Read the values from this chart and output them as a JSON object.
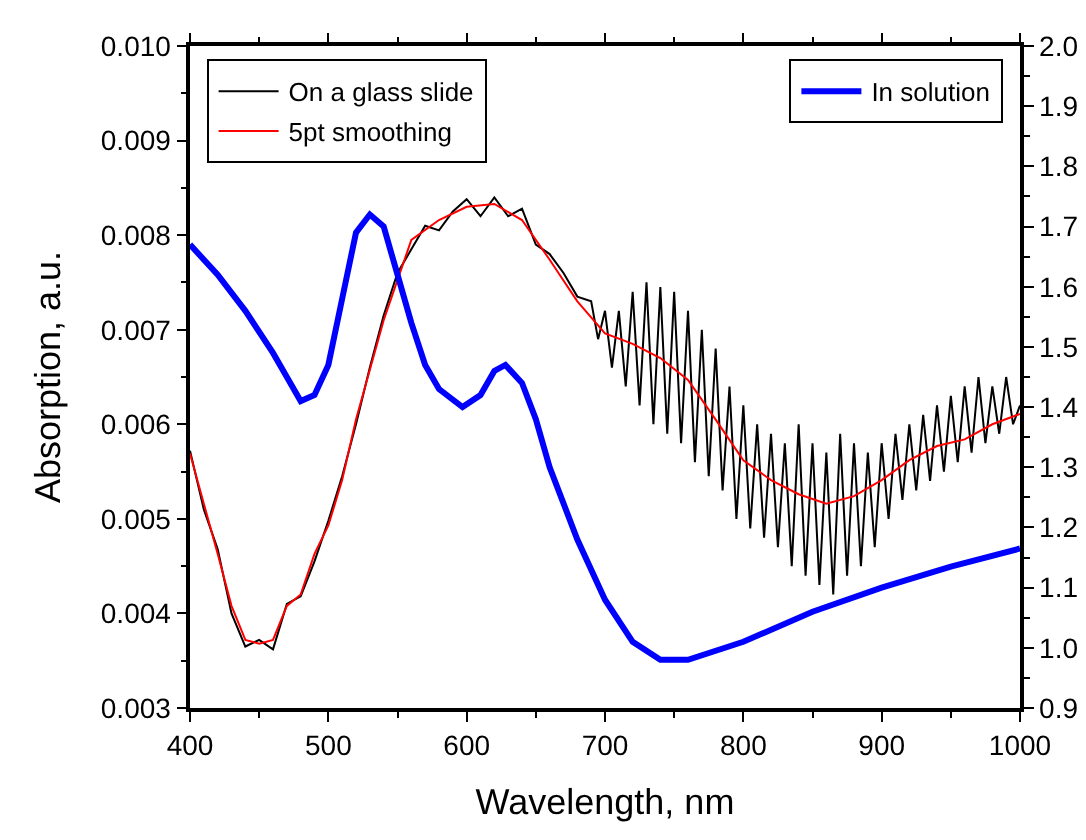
{
  "chart_data": {
    "type": "line",
    "xlabel": "Wavelength, nm",
    "ylabel": "Absorption, a.u.",
    "xlim": [
      400,
      1000
    ],
    "xticks": [
      400,
      500,
      600,
      700,
      800,
      900,
      1000
    ],
    "ylim": [
      0.003,
      0.01
    ],
    "yticks": [
      0.003,
      0.004,
      0.005,
      0.006,
      0.007,
      0.008,
      0.009,
      {
        "value": 0.01,
        "label": "0.010"
      }
    ],
    "y2lim": [
      0.9,
      2.0
    ],
    "y2ticks": [
      0.9,
      {
        "value": 1.0,
        "label": "1.0"
      },
      1.1,
      1.2,
      1.3,
      1.4,
      1.5,
      1.6,
      1.7,
      1.8,
      1.9,
      {
        "value": 2.0,
        "label": "2.0"
      }
    ],
    "legend": "top left",
    "line_style": "solid",
    "marker": "none",
    "series": [
      {
        "name": "On a glass slide",
        "color": "#000000",
        "x": [
          400,
          410,
          420,
          430,
          440,
          450,
          460,
          470,
          480,
          490,
          500,
          510,
          520,
          530,
          540,
          550,
          560,
          570,
          580,
          590,
          600,
          610,
          620,
          630,
          640,
          650,
          660,
          670,
          680,
          690,
          695,
          700,
          705,
          710,
          715,
          720,
          725,
          730,
          735,
          740,
          745,
          750,
          755,
          760,
          765,
          770,
          775,
          780,
          785,
          790,
          795,
          800,
          805,
          810,
          815,
          820,
          825,
          830,
          835,
          840,
          845,
          850,
          855,
          860,
          865,
          870,
          875,
          880,
          885,
          890,
          895,
          900,
          905,
          910,
          915,
          920,
          925,
          930,
          935,
          940,
          945,
          950,
          955,
          960,
          965,
          970,
          975,
          980,
          985,
          990,
          995,
          1000
        ],
        "values": [
          0.00572,
          0.0051,
          0.00468,
          0.004,
          0.00365,
          0.00372,
          0.00362,
          0.0041,
          0.00418,
          0.00455,
          0.00498,
          0.00545,
          0.006,
          0.0066,
          0.00715,
          0.0076,
          0.00785,
          0.0081,
          0.00805,
          0.00825,
          0.00838,
          0.0082,
          0.0084,
          0.0082,
          0.00828,
          0.0079,
          0.0078,
          0.0076,
          0.00735,
          0.0073,
          0.0069,
          0.0072,
          0.0066,
          0.0072,
          0.0064,
          0.0074,
          0.0062,
          0.0075,
          0.006,
          0.00745,
          0.0059,
          0.0074,
          0.0058,
          0.0072,
          0.0056,
          0.007,
          0.00545,
          0.0068,
          0.0053,
          0.0064,
          0.005,
          0.0062,
          0.0049,
          0.006,
          0.0048,
          0.0059,
          0.0047,
          0.0058,
          0.0045,
          0.006,
          0.0044,
          0.0058,
          0.0043,
          0.0057,
          0.0042,
          0.0059,
          0.0044,
          0.0058,
          0.0045,
          0.0057,
          0.0047,
          0.0058,
          0.005,
          0.0059,
          0.0052,
          0.006,
          0.0053,
          0.0061,
          0.0054,
          0.0062,
          0.0055,
          0.0063,
          0.0056,
          0.0064,
          0.0057,
          0.0065,
          0.0058,
          0.0064,
          0.0059,
          0.0065,
          0.006,
          0.0062
        ]
      },
      {
        "name": "5pt smoothing",
        "color": "#ff0000",
        "x": [
          400,
          420,
          430,
          440,
          450,
          460,
          470,
          480,
          490,
          500,
          510,
          520,
          540,
          560,
          580,
          600,
          620,
          640,
          660,
          680,
          700,
          720,
          740,
          760,
          780,
          800,
          820,
          840,
          860,
          880,
          900,
          920,
          940,
          960,
          980,
          1000
        ],
        "values": [
          0.00569,
          0.00463,
          0.00408,
          0.00372,
          0.00368,
          0.00372,
          0.00408,
          0.0042,
          0.00463,
          0.00493,
          0.00541,
          0.00605,
          0.0071,
          0.00795,
          0.00816,
          0.0083,
          0.00833,
          0.00816,
          0.00774,
          0.0073,
          0.00696,
          0.00685,
          0.0067,
          0.00647,
          0.00605,
          0.00562,
          0.00541,
          0.00526,
          0.00516,
          0.00524,
          0.00541,
          0.00562,
          0.00577,
          0.00584,
          0.006,
          0.00611
        ]
      },
      {
        "name": "In solution",
        "color": "#0000ff",
        "axis": "y2",
        "x": [
          400,
          420,
          440,
          460,
          470,
          480,
          490,
          500,
          510,
          520,
          530,
          540,
          550,
          560,
          570,
          580,
          597,
          610,
          620,
          628,
          640,
          650,
          660,
          680,
          700,
          720,
          740,
          760,
          800,
          850,
          900,
          950,
          1000
        ],
        "values": [
          1.67,
          1.62,
          1.56,
          1.49,
          1.45,
          1.41,
          1.42,
          1.47,
          1.58,
          1.69,
          1.72,
          1.7,
          1.62,
          1.54,
          1.47,
          1.43,
          1.4,
          1.42,
          1.46,
          1.47,
          1.44,
          1.38,
          1.3,
          1.18,
          1.08,
          1.01,
          0.98,
          0.98,
          1.01,
          1.06,
          1.1,
          1.135,
          1.165
        ]
      }
    ]
  }
}
